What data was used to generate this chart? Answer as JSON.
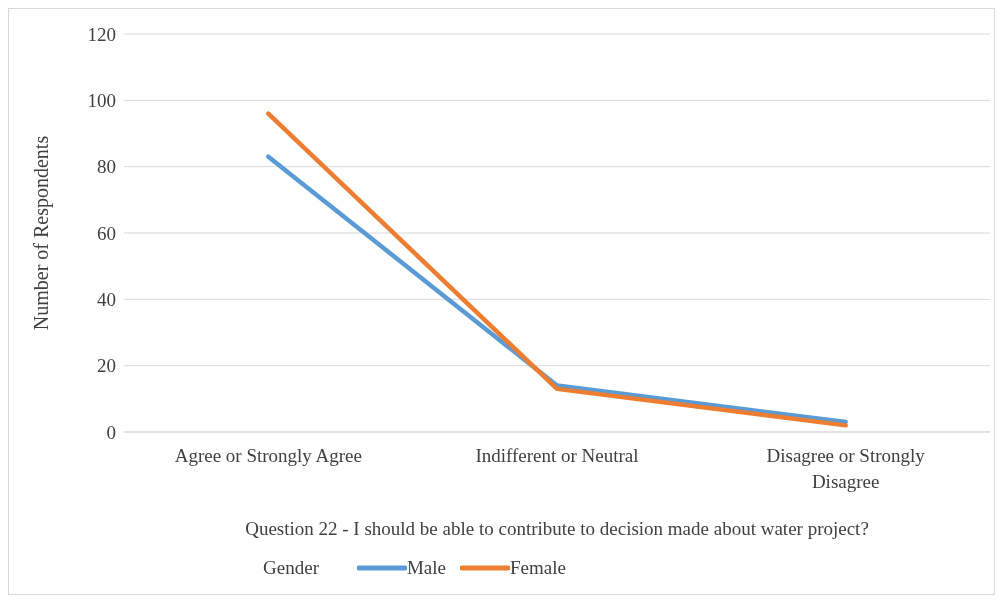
{
  "chart_data": {
    "type": "line",
    "xlabel": "Question 22 - I should be able to contribute to decision made about water project?",
    "ylabel": "Number of Respondents",
    "legend_title": "Gender",
    "categories": [
      "Agree or Strongly Agree",
      "Indifferent or Neutral",
      "Disagree or Strongly Disagree"
    ],
    "series": [
      {
        "name": "Male",
        "color": "#5b9bd5",
        "values": [
          83,
          14,
          3
        ]
      },
      {
        "name": "Female",
        "color": "#ed7d31",
        "values": [
          96,
          13,
          2
        ]
      }
    ],
    "ylim": [
      0,
      120
    ],
    "yticks": [
      0,
      20,
      40,
      60,
      80,
      100,
      120
    ],
    "grid": "y",
    "legend": "bottom",
    "marker": "none",
    "line_style": "solid"
  }
}
